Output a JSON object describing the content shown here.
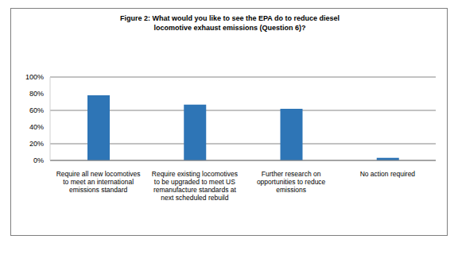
{
  "chart_data": {
    "type": "bar",
    "title": "Figure 2: What would you like to see the EPA do to reduce diesel locomotive exhaust emissions (Question 6)?",
    "categories": [
      "Require all new locomotives to meet an international emissions standard",
      "Require existing locomotives to be upgraded to meet US remanufacture standards at next scheduled rebuild",
      "Further research on opportunities to reduce emissions",
      "No action required"
    ],
    "values": [
      78,
      67,
      62,
      3
    ],
    "color": "#2e75b6",
    "ylim": [
      0,
      100
    ],
    "yticks": [
      {
        "value": 0,
        "label": "0%"
      },
      {
        "value": 20,
        "label": "20%"
      },
      {
        "value": 40,
        "label": "40%"
      },
      {
        "value": 60,
        "label": "60%"
      },
      {
        "value": 80,
        "label": "80%"
      },
      {
        "value": 100,
        "label": "100%"
      }
    ],
    "grid": true
  }
}
